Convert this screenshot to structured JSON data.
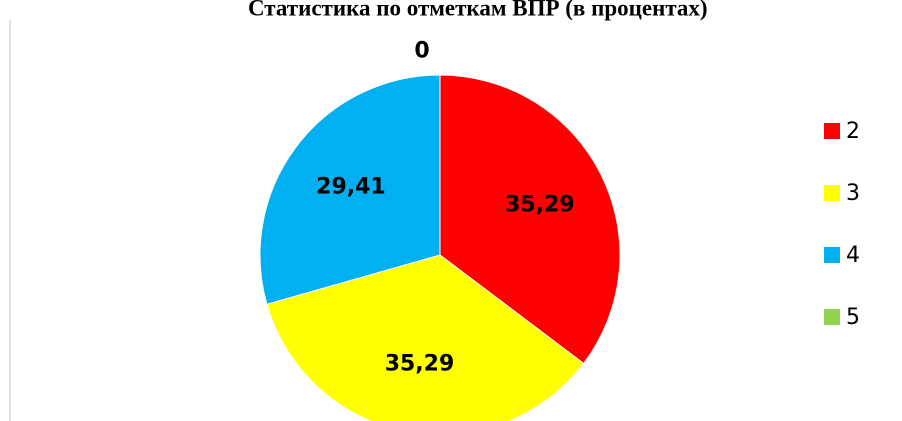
{
  "chart_data": {
    "type": "pie",
    "title": "Статистика по отметкам ВПР (в процентах)",
    "categories": [
      "2",
      "3",
      "4",
      "5"
    ],
    "values": [
      35.29,
      35.29,
      29.41,
      0
    ],
    "value_labels": [
      "35,29",
      "35,29",
      "29,41",
      "0"
    ],
    "colors": [
      "#ff0000",
      "#ffff00",
      "#00b0f0",
      "#92d050"
    ],
    "legend": "right"
  }
}
